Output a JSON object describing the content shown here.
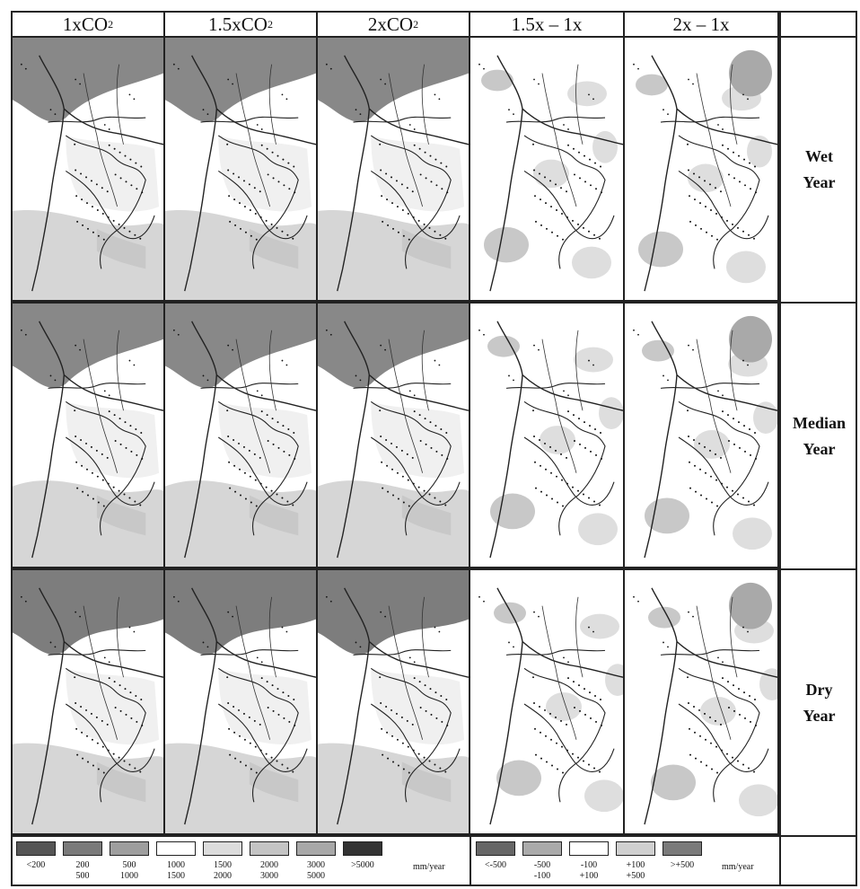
{
  "columns": [
    {
      "base": "1xCO",
      "sub": "2"
    },
    {
      "base": "1.5xCO",
      "sub": "2"
    },
    {
      "base": "2xCO",
      "sub": "2"
    },
    {
      "base": "1.5x – 1x",
      "sub": ""
    },
    {
      "base": "2x – 1x",
      "sub": ""
    }
  ],
  "rows": [
    {
      "line1": "Wet",
      "line2": "Year"
    },
    {
      "line1": "Median",
      "line2": "Year"
    },
    {
      "line1": "Dry",
      "line2": "Year"
    }
  ],
  "legend_absolute": {
    "unit": "mm/year",
    "classes": [
      {
        "label": "<200",
        "color": "#555555"
      },
      {
        "label": "200\n500",
        "color": "#7a7a7a"
      },
      {
        "label": "500\n1000",
        "color": "#9e9e9e"
      },
      {
        "label": "1000\n1500",
        "color": "#ffffff"
      },
      {
        "label": "1500\n2000",
        "color": "#dcdcdc"
      },
      {
        "label": "2000\n3000",
        "color": "#c4c4c4"
      },
      {
        "label": "3000\n5000",
        "color": "#a8a8a8"
      },
      {
        "label": ">5000",
        "color": "#333333"
      }
    ]
  },
  "legend_difference": {
    "unit": "mm/year",
    "classes": [
      {
        "label": "<-500",
        "color": "#666666"
      },
      {
        "label": "-500\n-100",
        "color": "#aaaaaa"
      },
      {
        "label": "-100\n+100",
        "color": "#ffffff"
      },
      {
        "label": "+100\n+500",
        "color": "#d0d0d0"
      },
      {
        "label": ">+500",
        "color": "#7a7a7a"
      }
    ]
  }
}
